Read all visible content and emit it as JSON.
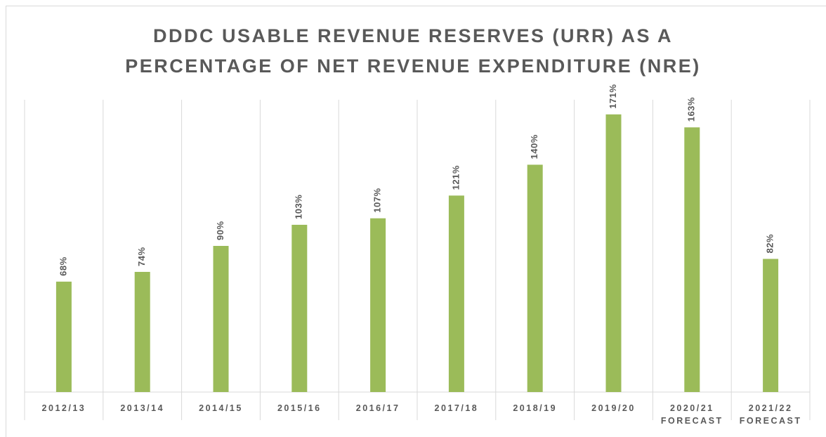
{
  "chart_data": {
    "type": "bar",
    "title": "DDDC USABLE REVENUE RESERVES (URR) AS A\nPERCENTAGE OF NET REVENUE EXPENDITURE (NRE)",
    "categories": [
      "2012/13",
      "2013/14",
      "2014/15",
      "2015/16",
      "2016/17",
      "2017/18",
      "2018/19",
      "2019/20",
      "2020/21\nFORECAST",
      "2021/22\nFORECAST"
    ],
    "values": [
      68,
      74,
      90,
      103,
      107,
      121,
      140,
      171,
      163,
      82
    ],
    "value_labels": [
      "68%",
      "74%",
      "90%",
      "103%",
      "107%",
      "121%",
      "140%",
      "171%",
      "163%",
      "82%"
    ],
    "color": "#9bbb59",
    "ylim": [
      0,
      180
    ]
  }
}
